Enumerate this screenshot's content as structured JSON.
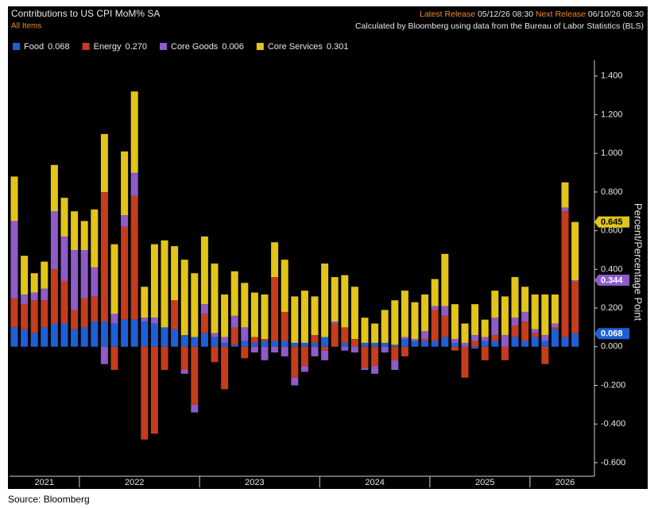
{
  "chart_data": {
    "type": "stacked_bar",
    "title": "Contributions to US CPI MoM% SA",
    "subtitle": "All Items",
    "release": {
      "latest_label": "Latest Release",
      "latest": "05/12/26 08:30",
      "next_label": "Next Release",
      "next": "06/10/26 08:30"
    },
    "note": "Calculated by Bloomberg using data from the Bureau of Labor Statistics (BLS)",
    "y_label": "Percent/Percentage Point",
    "source": "Source: Bloomberg",
    "categories": [
      null,
      null,
      null,
      "2021",
      null,
      null,
      null,
      null,
      null,
      null,
      null,
      null,
      "2022",
      null,
      null,
      null,
      null,
      null,
      null,
      null,
      null,
      null,
      null,
      null,
      "2023",
      null,
      null,
      null,
      null,
      null,
      null,
      null,
      null,
      null,
      null,
      null,
      "2024",
      null,
      null,
      null,
      null,
      null,
      null,
      null,
      null,
      null,
      null,
      "2025",
      null,
      null,
      null,
      null,
      null,
      null,
      null,
      "2026",
      null
    ],
    "series": [
      {
        "name": "Food",
        "color": "#1f5fd6",
        "values": [
          0.1,
          0.09,
          0.07,
          0.1,
          0.12,
          0.12,
          0.09,
          0.1,
          0.13,
          0.13,
          0.12,
          0.14,
          0.14,
          0.13,
          0.12,
          0.1,
          0.09,
          0.06,
          0.05,
          0.07,
          0.05,
          0.02,
          0.01,
          0.03,
          0.02,
          0.03,
          0.03,
          0.03,
          0.02,
          0.02,
          0.02,
          0.05,
          0.0,
          0.02,
          0.0,
          0.02,
          0.02,
          0.02,
          0.01,
          0.04,
          0.03,
          0.03,
          0.03,
          0.05,
          0.02,
          0.0,
          -0.01,
          0.03,
          0.03,
          0.0,
          0.05,
          0.03,
          0.05,
          0.03,
          0.09,
          0.05,
          0.068
        ]
      },
      {
        "name": "Energy",
        "color": "#c43d1c",
        "values": [
          0.15,
          0.13,
          0.17,
          0.14,
          0.28,
          0.22,
          0.1,
          0.15,
          0.13,
          0.67,
          -0.12,
          0.48,
          0.64,
          -0.48,
          -0.45,
          -0.12,
          0.15,
          -0.12,
          -0.3,
          0.1,
          -0.08,
          -0.22,
          0.09,
          -0.06,
          0.03,
          0.01,
          0.33,
          0.15,
          -0.16,
          -0.1,
          0.04,
          -0.02,
          0.12,
          0.08,
          0.04,
          -0.11,
          -0.1,
          0.0,
          -0.07,
          -0.05,
          0.0,
          0.01,
          0.16,
          0.11,
          -0.02,
          -0.16,
          0.03,
          -0.07,
          0.03,
          -0.07,
          0.06,
          0.1,
          0.02,
          -0.09,
          0.01,
          0.65,
          0.27
        ],
        "value_labels": [
          null,
          null,
          null,
          null,
          null,
          null,
          null,
          null,
          null,
          null,
          null,
          null,
          null,
          null,
          null,
          null,
          null,
          null,
          null,
          null,
          null,
          null,
          null,
          null,
          null,
          null,
          null,
          null,
          null,
          null,
          null,
          null,
          null,
          null,
          null,
          null,
          null,
          null,
          null,
          null,
          null,
          null,
          null,
          null,
          null,
          null,
          null,
          null,
          null,
          null,
          null,
          null,
          null,
          null,
          null,
          null,
          "0.270"
        ]
      },
      {
        "name": "Core Goods",
        "color": "#8e5bc9",
        "values": [
          0.4,
          0.05,
          0.04,
          0.06,
          0.3,
          0.23,
          0.31,
          0.25,
          0.15,
          -0.09,
          0.05,
          0.06,
          0.12,
          0.02,
          0.03,
          0.0,
          0.0,
          -0.02,
          -0.04,
          0.05,
          0.02,
          0.03,
          0.06,
          0.07,
          -0.03,
          -0.07,
          -0.03,
          -0.05,
          -0.04,
          -0.03,
          -0.05,
          -0.05,
          0.01,
          -0.02,
          -0.03,
          -0.01,
          -0.04,
          -0.03,
          -0.05,
          0.01,
          0.01,
          0.04,
          0.02,
          0.05,
          0.02,
          0.02,
          0.03,
          0.02,
          0.09,
          0.06,
          0.04,
          0.05,
          0.02,
          0.03,
          0.02,
          0.02,
          0.006
        ]
      },
      {
        "name": "Core Services",
        "color": "#e3c41a",
        "values": [
          0.23,
          0.2,
          0.1,
          0.14,
          0.24,
          0.2,
          0.2,
          0.15,
          0.3,
          0.3,
          0.36,
          0.33,
          0.42,
          0.16,
          0.38,
          0.45,
          0.28,
          0.39,
          0.33,
          0.35,
          0.36,
          0.22,
          0.23,
          0.23,
          0.23,
          0.23,
          0.18,
          0.27,
          0.24,
          0.27,
          0.2,
          0.38,
          0.23,
          0.27,
          0.27,
          0.13,
          0.1,
          0.17,
          0.23,
          0.24,
          0.19,
          0.19,
          0.14,
          0.27,
          0.18,
          0.1,
          0.16,
          0.09,
          0.14,
          0.2,
          0.21,
          0.13,
          0.18,
          0.21,
          0.15,
          0.13,
          0.301
        ]
      }
    ],
    "tags": [
      {
        "value": 0.645,
        "color": "#e3c41a",
        "text_color": "#000000"
      },
      {
        "value": 0.344,
        "color": "#8e5bc9",
        "text_color": "#ffffff"
      },
      {
        "value": 0.068,
        "color": "#1f5fd6",
        "text_color": "#ffffff"
      }
    ],
    "ylim": [
      -0.67,
      1.44
    ],
    "yticks": [
      {
        "value": -0.6,
        "label": "-0.600"
      },
      {
        "value": -0.4,
        "label": "-0.400"
      },
      {
        "value": -0.2,
        "label": "-0.200"
      },
      {
        "value": 0,
        "label": "0.000"
      },
      {
        "value": 0.2,
        "label": "0.200"
      },
      {
        "value": 0.4,
        "label": "0.400"
      },
      {
        "value": 0.6,
        "label": "0.600"
      },
      {
        "value": 0.8,
        "label": "0.800"
      },
      {
        "value": 1.0,
        "label": "1.000"
      },
      {
        "value": 1.2,
        "label": "1.200"
      },
      {
        "value": 1.4,
        "label": "1.400"
      }
    ],
    "grid": false
  }
}
